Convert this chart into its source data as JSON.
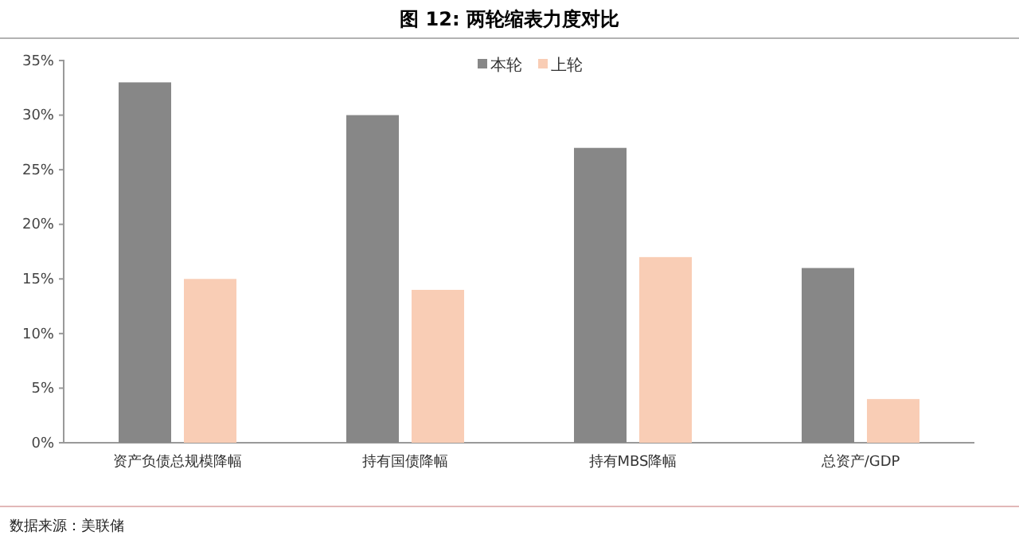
{
  "chart_data": {
    "type": "bar",
    "title": "图 12: 两轮缩表力度对比",
    "categories": [
      "资产负债总规模降幅",
      "持有国债降幅",
      "持有MBS降幅",
      "总资产/GDP"
    ],
    "series": [
      {
        "name": "本轮",
        "color": "#878787",
        "values": [
          33,
          30,
          27,
          16
        ]
      },
      {
        "name": "上轮",
        "color": "#f9cdb5",
        "values": [
          15,
          14,
          17,
          4
        ]
      }
    ],
    "ylim": [
      0,
      35
    ],
    "yticks": [
      {
        "value": 0,
        "label": "0%"
      },
      {
        "value": 5,
        "label": "5%"
      },
      {
        "value": 10,
        "label": "10%"
      },
      {
        "value": 15,
        "label": "15%"
      },
      {
        "value": 20,
        "label": "20%"
      },
      {
        "value": 25,
        "label": "25%"
      },
      {
        "value": 30,
        "label": "30%"
      },
      {
        "value": 35,
        "label": "35%"
      }
    ],
    "grid": false,
    "legend": "top",
    "annotations": [
      "数据来源：美联储"
    ]
  }
}
